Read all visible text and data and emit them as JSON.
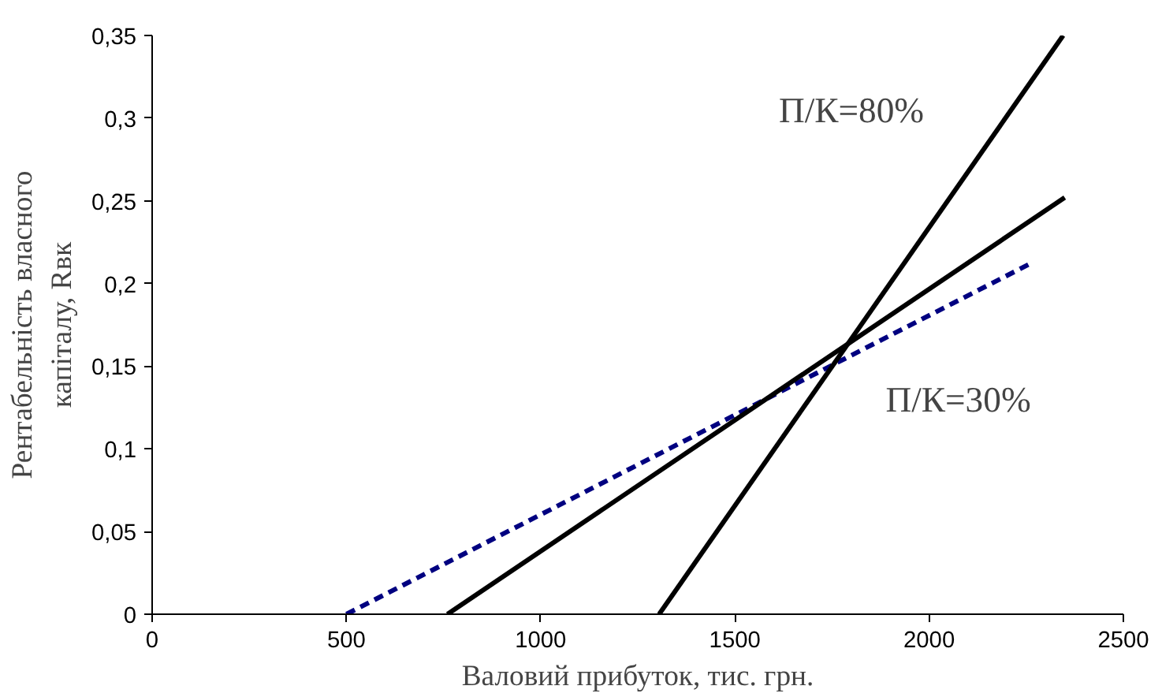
{
  "chart_data": {
    "type": "line",
    "xlabel": "Валовий прибуток, тис. грн.",
    "ylabel": "Рентабельність власного\nкапіталу, Rвк",
    "series": [
      {
        "color": "#000080",
        "line_style": "dashed",
        "x": [
          500,
          2260
        ],
        "values": [
          0,
          0.212
        ]
      },
      {
        "color": "#000000",
        "line_style": "solid",
        "x": [
          760,
          2349
        ],
        "values": [
          0,
          0.252
        ]
      },
      {
        "color": "#000000",
        "line_style": "solid",
        "x": [
          1305,
          2345
        ],
        "values": [
          0,
          0.35
        ]
      }
    ],
    "annotations": [
      "П/К=80%",
      "П/К=30%"
    ],
    "xlim": [
      0,
      2500
    ],
    "xticks": [
      0,
      500,
      1000,
      1500,
      2000,
      2500
    ],
    "ylim": [
      0,
      0.35
    ],
    "yticks": [
      {
        "value": 0,
        "label": "0"
      },
      {
        "value": 0.05,
        "label": "0,05"
      },
      {
        "value": 0.1,
        "label": "0,1"
      },
      {
        "value": 0.15,
        "label": "0,15"
      },
      {
        "value": 0.2,
        "label": "0,2"
      },
      {
        "value": 0.25,
        "label": "0,25"
      },
      {
        "value": 0.3,
        "label": "0,3"
      },
      {
        "value": 0.35,
        "label": "0,35"
      }
    ],
    "grid": false,
    "marker": "none"
  }
}
